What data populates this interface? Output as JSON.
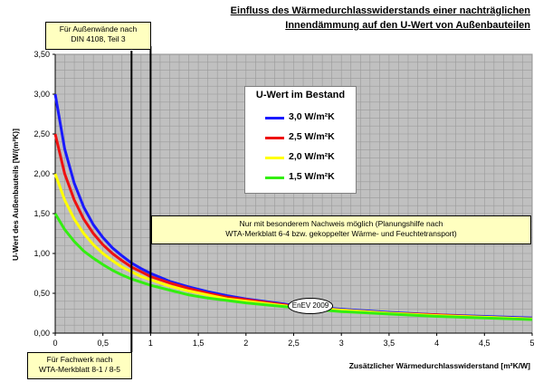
{
  "title_line1": "Einfluss des Wärmedurchlasswiderstands einer nachträglichen",
  "title_line2": "Innendämmung auf den U-Wert von Außenbauteilen",
  "annotations": {
    "outer_walls_line1": "Für Außenwände nach",
    "outer_walls_line2": "DIN 4108, Teil 3",
    "framework_line1": "Für Fachwerk nach",
    "framework_line2": "WTA-Merkblatt 8-1 / 8-5",
    "proof_line1": "Nur mit besonderem Nachweis möglich (Planungshilfe nach",
    "proof_line2": "WTA-Merkblatt 6-4 bzw. gekoppelter Wärme- und Feuchtetransport)",
    "enev": "EnEV 2009"
  },
  "legend": {
    "title": "U-Wert im Bestand",
    "items": [
      {
        "label": "3,0 W/m²K",
        "color": "#1a1aff"
      },
      {
        "label": "2,5 W/m²K",
        "color": "#ee1111"
      },
      {
        "label": "2,0 W/m²K",
        "color": "#ffff00"
      },
      {
        "label": "1,5 W/m²K",
        "color": "#33ee11"
      }
    ]
  },
  "chart_data": {
    "type": "line",
    "title": "Einfluss des Wärmedurchlasswiderstands einer nachträglichen Innendämmung auf den U-Wert von Außenbauteilen",
    "xlabel": "Zusätzlicher Wärmedurchlasswiderstand [m²K/W]",
    "ylabel": "U-Wert des Außenbauteils [W/(m²K)]",
    "xlim": [
      0,
      5
    ],
    "ylim": [
      0,
      3.5
    ],
    "x_ticks": [
      "0",
      "0,5",
      "1",
      "1,5",
      "2",
      "2,5",
      "3",
      "3,5",
      "4",
      "4,5",
      "5"
    ],
    "y_ticks": [
      "0,00",
      "0,50",
      "1,00",
      "1,50",
      "2,00",
      "2,50",
      "3,00",
      "3,50"
    ],
    "grid": true,
    "legend_position": "top-center",
    "x": [
      0,
      0.1,
      0.2,
      0.3,
      0.4,
      0.5,
      0.6,
      0.7,
      0.8,
      0.9,
      1.0,
      1.2,
      1.4,
      1.6,
      1.8,
      2.0,
      2.5,
      3.0,
      3.5,
      4.0,
      4.5,
      5.0
    ],
    "series": [
      {
        "name": "3,0 W/m²K",
        "color": "#1a1aff",
        "values": [
          3.0,
          2.31,
          1.88,
          1.58,
          1.36,
          1.2,
          1.07,
          0.97,
          0.88,
          0.81,
          0.75,
          0.65,
          0.58,
          0.52,
          0.47,
          0.43,
          0.35,
          0.3,
          0.26,
          0.23,
          0.21,
          0.19
        ]
      },
      {
        "name": "2,5 W/m²K",
        "color": "#ee1111",
        "values": [
          2.5,
          2.0,
          1.67,
          1.43,
          1.25,
          1.11,
          1.0,
          0.91,
          0.83,
          0.77,
          0.71,
          0.63,
          0.56,
          0.5,
          0.45,
          0.42,
          0.34,
          0.29,
          0.25,
          0.23,
          0.2,
          0.18
        ]
      },
      {
        "name": "2,0 W/m²K",
        "color": "#ffff00",
        "values": [
          2.0,
          1.67,
          1.43,
          1.25,
          1.11,
          1.0,
          0.91,
          0.83,
          0.77,
          0.71,
          0.67,
          0.59,
          0.53,
          0.48,
          0.43,
          0.4,
          0.33,
          0.29,
          0.25,
          0.22,
          0.2,
          0.18
        ]
      },
      {
        "name": "1,5 W/m²K",
        "color": "#33ee11",
        "values": [
          1.5,
          1.3,
          1.15,
          1.03,
          0.94,
          0.86,
          0.79,
          0.73,
          0.68,
          0.64,
          0.6,
          0.54,
          0.48,
          0.44,
          0.41,
          0.38,
          0.32,
          0.27,
          0.24,
          0.21,
          0.19,
          0.17
        ]
      }
    ],
    "reference_lines_x": [
      0.8,
      1.0
    ]
  }
}
